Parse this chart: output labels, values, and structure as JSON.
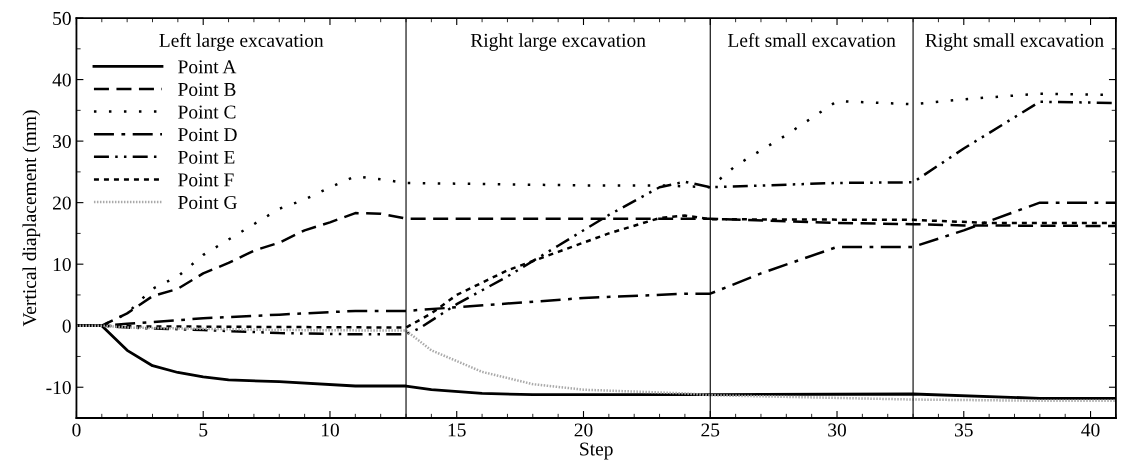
{
  "chart_data": {
    "type": "line",
    "xlabel": "Step",
    "ylabel": "Vertical diaplacement (mm)",
    "xlim": [
      0,
      41
    ],
    "ylim": [
      -15,
      50
    ],
    "xticks": [
      0,
      5,
      10,
      15,
      20,
      25,
      30,
      35,
      40
    ],
    "yticks": [
      -10,
      0,
      10,
      20,
      30,
      40,
      50
    ],
    "grid": false,
    "legend": "top left",
    "marker": "none",
    "ref_lines": [
      {
        "axis": "x",
        "value": 13,
        "color": "#000000"
      },
      {
        "axis": "x",
        "value": 25,
        "color": "#000000"
      },
      {
        "axis": "x",
        "value": 33,
        "color": "#000000"
      }
    ],
    "annotations": [
      "Left large excavation",
      "Right large excavation",
      "Left small excavation",
      "Right small excavation"
    ],
    "series": [
      {
        "name": "Point A",
        "color": "#000000",
        "line_style": "solid",
        "x": [
          0,
          1,
          2,
          3,
          4,
          5,
          6,
          8,
          11,
          13,
          14,
          16,
          18,
          25,
          33,
          38,
          41
        ],
        "values": [
          0,
          0,
          -4,
          -6.5,
          -7.6,
          -8.3,
          -8.8,
          -9.1,
          -9.8,
          -9.8,
          -10.4,
          -11,
          -11.2,
          -11.2,
          -11.1,
          -11.8,
          -11.8
        ]
      },
      {
        "name": "Point B",
        "color": "#000000",
        "line_style": "dashed",
        "x": [
          0,
          1,
          2,
          3,
          4,
          5,
          6,
          7,
          8,
          9,
          10,
          11,
          12,
          13,
          25,
          30,
          33,
          35,
          41
        ],
        "values": [
          0,
          0,
          2,
          4.8,
          6,
          8.5,
          10.2,
          12.2,
          13.5,
          15.5,
          16.8,
          18.3,
          18.2,
          17.4,
          17.4,
          16.7,
          16.5,
          16.3,
          16.2
        ]
      },
      {
        "name": "Point C",
        "color": "#000000",
        "line_style": "dotted",
        "x": [
          0,
          1,
          2,
          3,
          4,
          5,
          6,
          7,
          8,
          9,
          10,
          11,
          12,
          13,
          20,
          23,
          25,
          26,
          28,
          30,
          33,
          35,
          38,
          41
        ],
        "values": [
          0,
          0,
          2,
          6,
          8,
          11.5,
          14,
          16.5,
          19,
          20.5,
          22.5,
          24.3,
          23.8,
          23.2,
          22.8,
          22.8,
          22.5,
          26,
          31,
          36.5,
          36,
          36.8,
          37.7,
          37.5
        ]
      },
      {
        "name": "Point D",
        "color": "#000000",
        "line_style": "dashdot",
        "x": [
          0,
          1,
          2,
          5,
          8,
          11,
          13,
          15,
          20,
          24,
          25,
          27,
          30,
          33,
          35,
          38,
          41
        ],
        "values": [
          0,
          0,
          0.3,
          1.2,
          1.8,
          2.4,
          2.4,
          3,
          4.5,
          5.2,
          5.2,
          8.5,
          12.8,
          12.8,
          15.5,
          20,
          20
        ]
      },
      {
        "name": "Point E",
        "color": "#000000",
        "line_style": "dashdotdot",
        "x": [
          0,
          1,
          2,
          5,
          8,
          11,
          13,
          13.5,
          15,
          17,
          19,
          21,
          23,
          24,
          25,
          30,
          33,
          35,
          38,
          41
        ],
        "values": [
          0,
          0,
          -0.3,
          -0.7,
          -1.2,
          -1.4,
          -1.4,
          -0.5,
          3.5,
          8,
          13,
          18,
          22.5,
          23.4,
          22.5,
          23.2,
          23.3,
          28.8,
          36.4,
          36.2
        ]
      },
      {
        "name": "Point F",
        "color": "#000000",
        "line_style": "short dashed",
        "x": [
          0,
          1,
          2,
          13,
          14,
          15,
          17,
          19,
          21,
          23,
          24,
          25,
          33,
          36,
          41
        ],
        "values": [
          0,
          0,
          -0.1,
          -0.3,
          2,
          5,
          9,
          12,
          15,
          17.5,
          17.9,
          17.3,
          17.2,
          16.7,
          16.7
        ]
      },
      {
        "name": "Point G",
        "color": "#aaaaaa",
        "line_style": "densely dotted",
        "x": [
          0,
          1,
          2,
          8,
          13,
          14,
          16,
          18,
          20,
          24,
          25,
          33,
          38,
          41
        ],
        "values": [
          0,
          0,
          -0.3,
          -0.7,
          -0.8,
          -4,
          -7.5,
          -9.5,
          -10.4,
          -11,
          -11.3,
          -12,
          -12.2,
          -12.2
        ]
      }
    ]
  }
}
